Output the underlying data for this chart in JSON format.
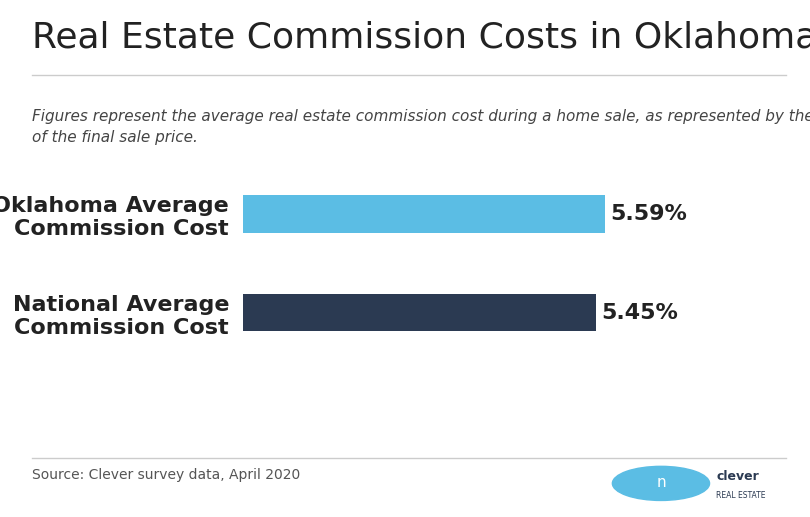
{
  "title": "Real Estate Commission Costs in Oklahoma",
  "subtitle": "Figures represent the average real estate commission cost during a home sale, as represented by the percentage\nof the final sale price.",
  "categories": [
    "Oklahoma Average\nCommission Cost",
    "National Average\nCommission Cost"
  ],
  "values": [
    5.59,
    5.45
  ],
  "bar_colors": [
    "#5bbde4",
    "#2b3a52"
  ],
  "value_labels": [
    "5.59%",
    "5.45%"
  ],
  "source_text": "Source: Clever survey data, April 2020",
  "background_color": "#ffffff",
  "title_fontsize": 26,
  "subtitle_fontsize": 11,
  "label_fontsize": 16,
  "value_fontsize": 16,
  "source_fontsize": 10,
  "xlim": [
    0,
    7.5
  ],
  "logo_text_clever": "clever",
  "logo_text_sub": "REAL ESTATE"
}
